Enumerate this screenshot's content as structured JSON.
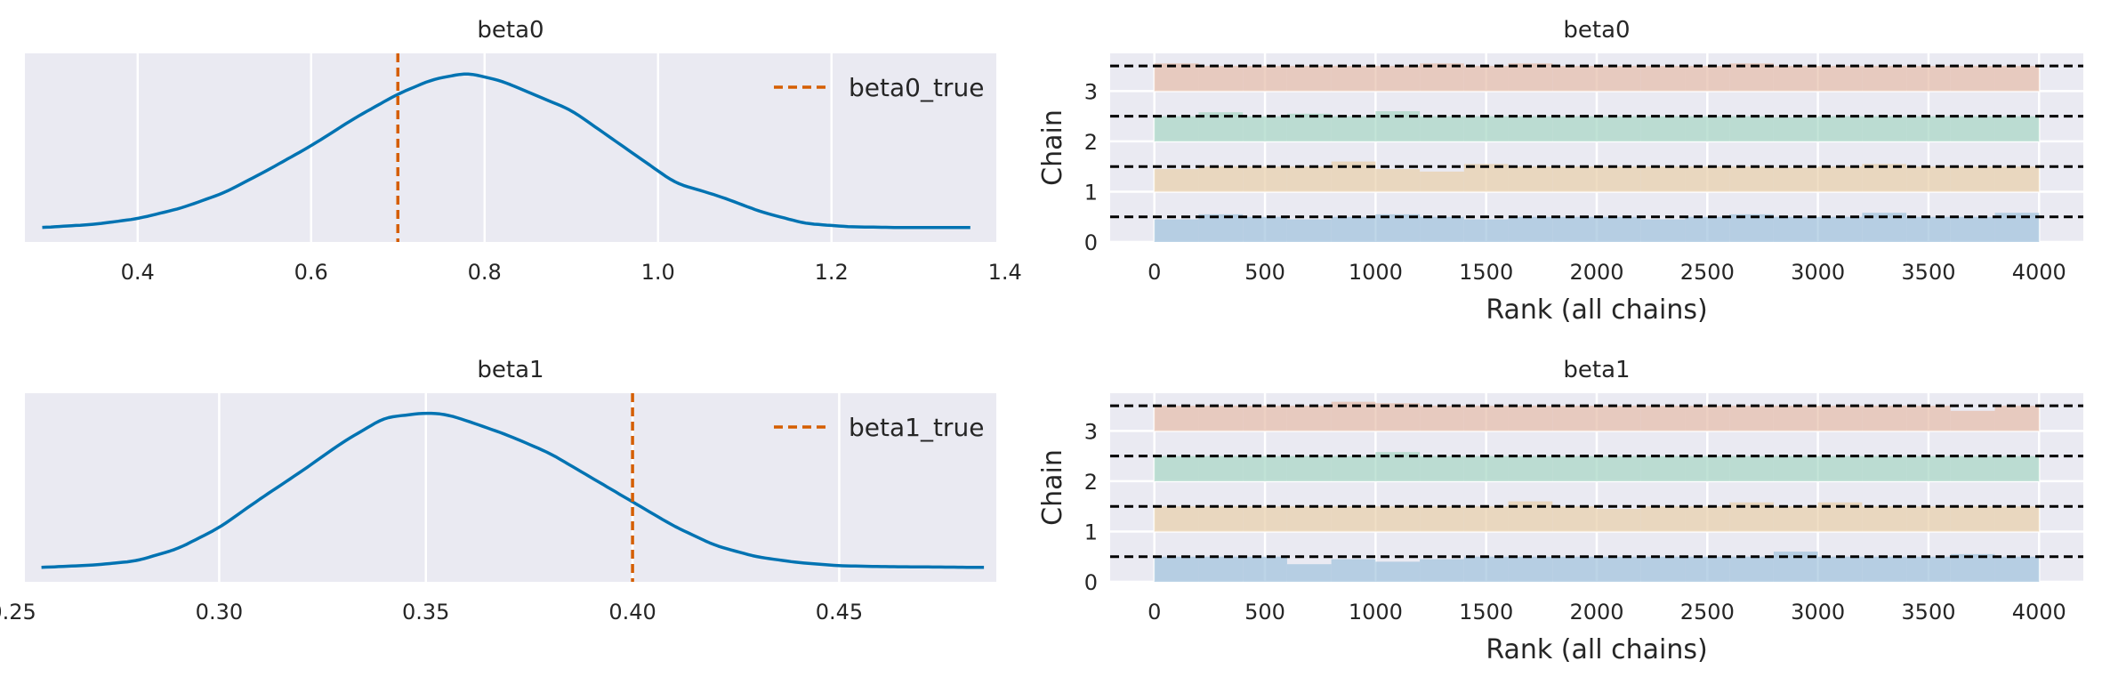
{
  "chart_data": [
    {
      "panel": "kde-beta0",
      "type": "line",
      "title": "beta0",
      "xlim": [
        0.27,
        1.39
      ],
      "xticks": [
        0.4,
        0.6,
        0.8,
        1.0,
        1.2,
        1.4
      ],
      "xtick_labels": [
        "0.4",
        "0.6",
        "0.8",
        "1.0",
        "1.2",
        "1.4"
      ],
      "ylim": [
        0,
        1.0
      ],
      "grid": true,
      "legend": "top-right",
      "series": [
        {
          "x": [
            0.29,
            0.35,
            0.4,
            0.45,
            0.5,
            0.55,
            0.6,
            0.65,
            0.7,
            0.74,
            0.78,
            0.82,
            0.86,
            0.9,
            0.94,
            0.98,
            1.02,
            1.07,
            1.12,
            1.17,
            1.22,
            1.28,
            1.36
          ],
          "y": [
            0.045,
            0.065,
            0.1,
            0.165,
            0.26,
            0.4,
            0.55,
            0.72,
            0.87,
            0.96,
            1.0,
            0.95,
            0.86,
            0.77,
            0.62,
            0.47,
            0.32,
            0.24,
            0.14,
            0.07,
            0.05,
            0.045,
            0.045
          ]
        }
      ],
      "reference_line": {
        "name": "beta0_true",
        "x": 0.7,
        "color": "#d55e00"
      },
      "line_color": "#0173b2"
    },
    {
      "panel": "rank-beta0",
      "type": "bar",
      "title": "beta0",
      "xlabel": "Rank (all chains)",
      "ylabel": "Chain",
      "xlim": [
        -200,
        4200
      ],
      "xticks": [
        0,
        500,
        1000,
        1500,
        2000,
        2500,
        3000,
        3500,
        4000
      ],
      "xtick_labels": [
        "0",
        "500",
        "1000",
        "1500",
        "2000",
        "2500",
        "3000",
        "3500",
        "4000"
      ],
      "yticks": [
        0,
        1,
        2,
        3
      ],
      "ytick_labels": [
        "0",
        "1",
        "2",
        "3"
      ],
      "ylim": [
        0,
        3.75
      ],
      "bins": 20,
      "chain_colors": [
        "#9fc2dd",
        "#e8ceaa",
        "#a6d6c4",
        "#e6bca9"
      ],
      "chains": [
        {
          "chain": 0,
          "heights": [
            0.45,
            0.55,
            0.5,
            0.45,
            0.5,
            0.55,
            0.5,
            0.45,
            0.5,
            0.5,
            0.5,
            0.45,
            0.5,
            0.55,
            0.5,
            0.5,
            0.58,
            0.5,
            0.5,
            0.58
          ]
        },
        {
          "chain": 1,
          "heights": [
            0.45,
            0.5,
            0.5,
            0.5,
            0.6,
            0.45,
            0.4,
            0.55,
            0.5,
            0.5,
            0.5,
            0.5,
            0.5,
            0.5,
            0.48,
            0.5,
            0.55,
            0.5,
            0.5,
            0.5
          ]
        },
        {
          "chain": 2,
          "heights": [
            0.5,
            0.58,
            0.5,
            0.55,
            0.5,
            0.6,
            0.5,
            0.5,
            0.5,
            0.5,
            0.5,
            0.5,
            0.5,
            0.5,
            0.48,
            0.5,
            0.5,
            0.5,
            0.5,
            0.5
          ]
        },
        {
          "chain": 3,
          "heights": [
            0.55,
            0.5,
            0.5,
            0.5,
            0.5,
            0.5,
            0.55,
            0.5,
            0.55,
            0.5,
            0.5,
            0.5,
            0.5,
            0.55,
            0.5,
            0.5,
            0.5,
            0.5,
            0.5,
            0.5
          ]
        }
      ]
    },
    {
      "panel": "kde-beta1",
      "type": "line",
      "title": "beta1",
      "xlim": [
        0.253,
        0.488
      ],
      "xticks": [
        0.25,
        0.3,
        0.35,
        0.4,
        0.45
      ],
      "xtick_labels": [
        "0.25",
        "0.30",
        "0.35",
        "0.40",
        "0.45"
      ],
      "ylim": [
        0,
        1.0
      ],
      "grid": true,
      "legend": "top-right",
      "series": [
        {
          "x": [
            0.257,
            0.27,
            0.28,
            0.29,
            0.3,
            0.31,
            0.32,
            0.33,
            0.34,
            0.35,
            0.355,
            0.36,
            0.37,
            0.38,
            0.39,
            0.4,
            0.41,
            0.42,
            0.43,
            0.44,
            0.45,
            0.46,
            0.485
          ],
          "y": [
            0.045,
            0.06,
            0.085,
            0.16,
            0.29,
            0.47,
            0.64,
            0.82,
            0.97,
            1.0,
            0.99,
            0.95,
            0.86,
            0.75,
            0.6,
            0.45,
            0.3,
            0.18,
            0.11,
            0.075,
            0.055,
            0.05,
            0.045
          ]
        }
      ],
      "reference_line": {
        "name": "beta1_true",
        "x": 0.4,
        "color": "#d55e00"
      },
      "line_color": "#0173b2"
    },
    {
      "panel": "rank-beta1",
      "type": "bar",
      "title": "beta1",
      "xlabel": "Rank (all chains)",
      "ylabel": "Chain",
      "xlim": [
        -200,
        4200
      ],
      "xticks": [
        0,
        500,
        1000,
        1500,
        2000,
        2500,
        3000,
        3500,
        4000
      ],
      "xtick_labels": [
        "0",
        "500",
        "1000",
        "1500",
        "2000",
        "2500",
        "3000",
        "3500",
        "4000"
      ],
      "yticks": [
        0,
        1,
        2,
        3
      ],
      "ytick_labels": [
        "0",
        "1",
        "2",
        "3"
      ],
      "ylim": [
        0,
        3.75
      ],
      "bins": 20,
      "chain_colors": [
        "#9fc2dd",
        "#e8ceaa",
        "#a6d6c4",
        "#e6bca9"
      ],
      "chains": [
        {
          "chain": 0,
          "heights": [
            0.5,
            0.5,
            0.5,
            0.35,
            0.45,
            0.4,
            0.45,
            0.5,
            0.5,
            0.5,
            0.5,
            0.5,
            0.5,
            0.5,
            0.6,
            0.5,
            0.5,
            0.5,
            0.55,
            0.5
          ]
        },
        {
          "chain": 1,
          "heights": [
            0.5,
            0.5,
            0.5,
            0.5,
            0.5,
            0.5,
            0.5,
            0.5,
            0.6,
            0.5,
            0.45,
            0.5,
            0.5,
            0.58,
            0.5,
            0.58,
            0.5,
            0.5,
            0.5,
            0.5
          ]
        },
        {
          "chain": 2,
          "heights": [
            0.5,
            0.5,
            0.5,
            0.5,
            0.5,
            0.58,
            0.5,
            0.5,
            0.5,
            0.5,
            0.5,
            0.5,
            0.5,
            0.5,
            0.5,
            0.5,
            0.5,
            0.5,
            0.5,
            0.5
          ]
        },
        {
          "chain": 3,
          "heights": [
            0.5,
            0.5,
            0.5,
            0.5,
            0.58,
            0.55,
            0.5,
            0.5,
            0.5,
            0.5,
            0.5,
            0.5,
            0.5,
            0.5,
            0.5,
            0.5,
            0.5,
            0.5,
            0.4,
            0.5
          ]
        }
      ]
    }
  ]
}
